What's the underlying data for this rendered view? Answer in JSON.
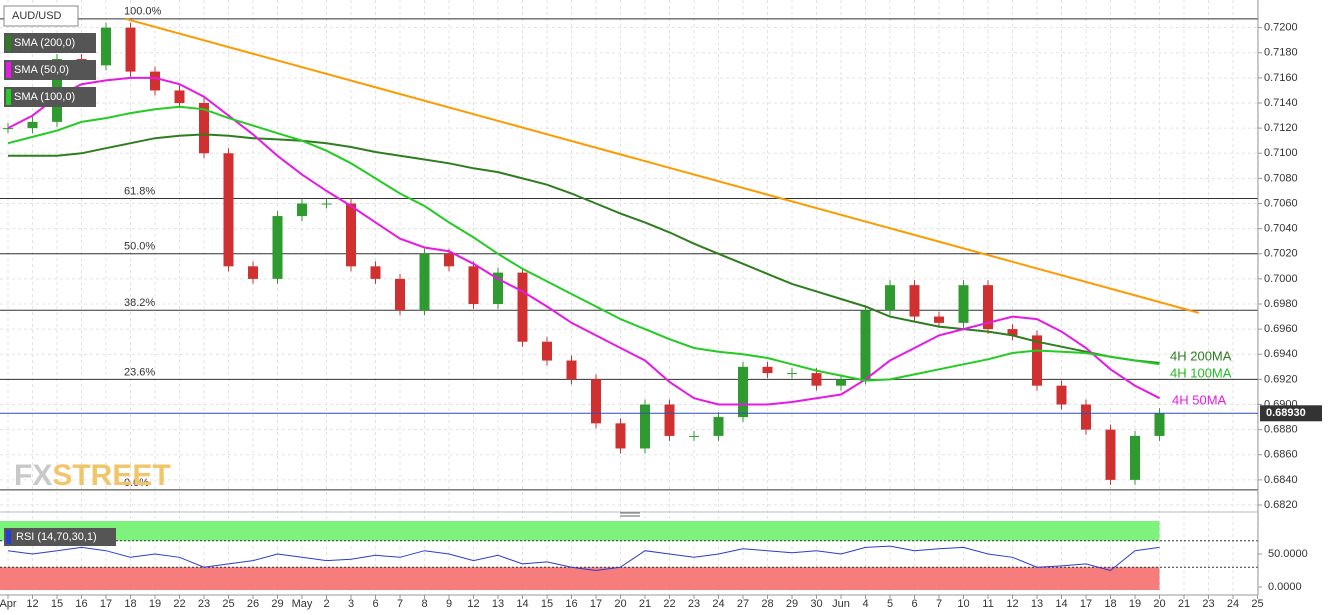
{
  "chart_data": {
    "type": "candlestick",
    "categories": [
      "Apr",
      "12",
      "15",
      "16",
      "17",
      "18",
      "19",
      "22",
      "23",
      "25",
      "26",
      "29",
      "May",
      "2",
      "3",
      "6",
      "7",
      "8",
      "9",
      "12",
      "13",
      "14",
      "15",
      "16",
      "17",
      "20",
      "21",
      "22",
      "23",
      "24",
      "27",
      "28",
      "29",
      "30",
      "Jun",
      "4",
      "5",
      "6",
      "7",
      "10",
      "11",
      "12",
      "13",
      "14",
      "17",
      "18",
      "19",
      "20",
      "21",
      "23",
      "24",
      "25"
    ],
    "ylim": [
      0.682,
      0.7222
    ],
    "yticks": [
      {
        "value": 0.682,
        "label": "0.6820"
      },
      {
        "value": 0.684,
        "label": "0.6840"
      },
      {
        "value": 0.686,
        "label": "0.6860"
      },
      {
        "value": 0.688,
        "label": "0.6880"
      },
      {
        "value": 0.69,
        "label": "0.6900"
      },
      {
        "value": 0.692,
        "label": "0.6920"
      },
      {
        "value": 0.694,
        "label": "0.6940"
      },
      {
        "value": 0.696,
        "label": "0.6960"
      },
      {
        "value": 0.698,
        "label": "0.6980"
      },
      {
        "value": 0.7,
        "label": "0.7000"
      },
      {
        "value": 0.702,
        "label": "0.7020"
      },
      {
        "value": 0.704,
        "label": "0.7040"
      },
      {
        "value": 0.706,
        "label": "0.7060"
      },
      {
        "value": 0.708,
        "label": "0.7080"
      },
      {
        "value": 0.71,
        "label": "0.7100"
      },
      {
        "value": 0.712,
        "label": "0.7120"
      },
      {
        "value": 0.714,
        "label": "0.7140"
      },
      {
        "value": 0.716,
        "label": "0.7160"
      },
      {
        "value": 0.718,
        "label": "0.7180"
      },
      {
        "value": 0.72,
        "label": "0.7200"
      }
    ],
    "grid": true,
    "price": {
      "name": "AUD/USD",
      "up_color": "#2f9a2f",
      "down_color": "#d03030",
      "values": [
        0.712,
        0.7125,
        0.7175,
        0.717,
        0.72,
        0.7165,
        0.715,
        0.714,
        0.71,
        0.701,
        0.7,
        0.705,
        0.706,
        0.706,
        0.701,
        0.7,
        0.6975,
        0.702,
        0.701,
        0.698,
        0.7005,
        0.695,
        0.6935,
        0.692,
        0.6885,
        0.6865,
        0.69,
        0.6875,
        0.6875,
        0.689,
        0.693,
        0.6925,
        0.6925,
        0.6915,
        0.692,
        0.6975,
        0.6995,
        0.697,
        0.6965,
        0.6995,
        0.696,
        0.6955,
        0.6915,
        0.69,
        0.688,
        0.684,
        0.6875,
        0.6893,
        null,
        null,
        null,
        null
      ]
    },
    "series": [
      {
        "name": "SMA (200,0)",
        "color": "#2e7d1e",
        "values": [
          0.7098,
          0.7098,
          0.7098,
          0.71,
          0.7104,
          0.7108,
          0.7112,
          0.7114,
          0.7115,
          0.7114,
          0.7112,
          0.7111,
          0.711,
          0.7108,
          0.7105,
          0.7101,
          0.7098,
          0.7095,
          0.7092,
          0.7088,
          0.7085,
          0.708,
          0.7075,
          0.7068,
          0.706,
          0.7052,
          0.7045,
          0.7037,
          0.7028,
          0.702,
          0.7012,
          0.7004,
          0.6996,
          0.699,
          0.6984,
          0.6978,
          0.697,
          0.6966,
          0.6962,
          0.696,
          0.6958,
          0.6955,
          0.695,
          0.6946,
          0.6942,
          0.6938,
          0.6935,
          0.6933,
          null,
          null,
          null,
          null
        ]
      },
      {
        "name": "SMA (50,0)",
        "color": "#e619e6",
        "values": [
          0.712,
          0.713,
          0.7145,
          0.7155,
          0.7158,
          0.716,
          0.716,
          0.7155,
          0.7145,
          0.713,
          0.7115,
          0.7098,
          0.7083,
          0.707,
          0.7058,
          0.7045,
          0.7032,
          0.7025,
          0.7022,
          0.7012,
          0.7,
          0.699,
          0.6978,
          0.6965,
          0.6955,
          0.6945,
          0.6935,
          0.6918,
          0.6905,
          0.69,
          0.69,
          0.69,
          0.6902,
          0.6905,
          0.6908,
          0.692,
          0.6935,
          0.6945,
          0.6955,
          0.696,
          0.6965,
          0.697,
          0.6968,
          0.6958,
          0.6945,
          0.6928,
          0.6915,
          0.6905,
          null,
          null,
          null,
          null
        ]
      },
      {
        "name": "SMA (100,0)",
        "color": "#22cc22",
        "values": [
          0.7108,
          0.7113,
          0.7118,
          0.7125,
          0.7128,
          0.7132,
          0.7135,
          0.7137,
          0.7135,
          0.7128,
          0.7122,
          0.7116,
          0.711,
          0.7102,
          0.7092,
          0.708,
          0.7068,
          0.7058,
          0.7045,
          0.7033,
          0.702,
          0.7008,
          0.6998,
          0.6988,
          0.6978,
          0.6968,
          0.696,
          0.6952,
          0.6945,
          0.6942,
          0.694,
          0.6937,
          0.6932,
          0.6927,
          0.6923,
          0.6919,
          0.692,
          0.6924,
          0.6928,
          0.6932,
          0.6936,
          0.6941,
          0.6943,
          0.6942,
          0.6941,
          0.6938,
          0.6935,
          0.6932,
          null,
          null,
          null,
          null
        ]
      }
    ],
    "fib_levels": [
      {
        "label": "100.0%",
        "value": 0.7207
      },
      {
        "label": "61.8%",
        "value": 0.7064
      },
      {
        "label": "50.0%",
        "value": 0.702
      },
      {
        "label": "38.2%",
        "value": 0.6975
      },
      {
        "label": "23.6%",
        "value": 0.692
      },
      {
        "label": "0.0%",
        "value": 0.6832
      }
    ],
    "trendline": {
      "color": "#ff9900",
      "x": [
        4.8,
        48.6
      ],
      "values": [
        0.7207,
        0.6973
      ]
    },
    "annotations": [
      {
        "text": "4H 200MA",
        "color": "#2e7d1e"
      },
      {
        "text": "4H 100MA",
        "color": "#22bb22"
      },
      {
        "text": "4H 50MA",
        "color": "#e619e6"
      }
    ],
    "last_price": {
      "value": 0.6893,
      "label": "0.68930"
    },
    "logo": [
      "FX",
      "STREET"
    ],
    "rsi": {
      "title": "RSI (14,70,30,1)",
      "color": "#2a3ccf",
      "ylim": [
        0,
        100
      ],
      "yticks": [
        {
          "value": 50,
          "label": "50.0000"
        },
        {
          "value": 0,
          "label": "0.0000"
        }
      ],
      "overbought": 70,
      "oversold": 30,
      "values": [
        55,
        50,
        55,
        60,
        55,
        45,
        50,
        45,
        30,
        35,
        40,
        50,
        45,
        40,
        42,
        48,
        45,
        55,
        50,
        40,
        48,
        35,
        38,
        30,
        25,
        30,
        55,
        50,
        45,
        50,
        58,
        55,
        52,
        55,
        50,
        60,
        62,
        55,
        58,
        60,
        50,
        45,
        30,
        32,
        35,
        25,
        55,
        60,
        null,
        null,
        null,
        null
      ]
    }
  }
}
